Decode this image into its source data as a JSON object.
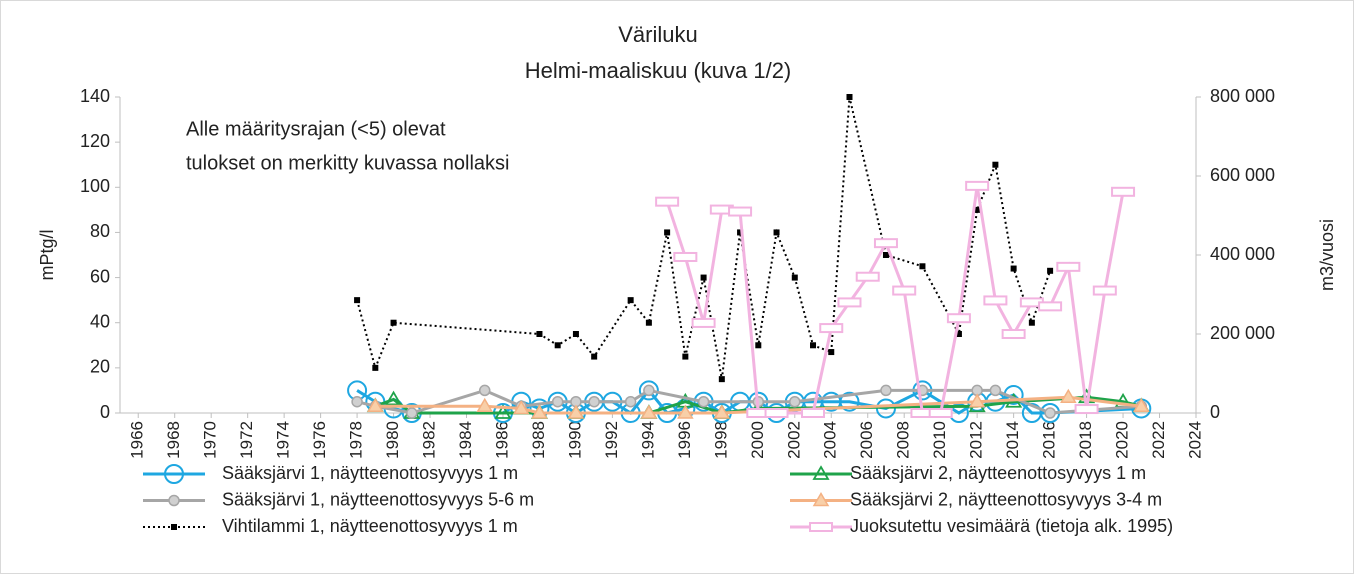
{
  "chart_data": {
    "type": "line",
    "title": "Väriluku",
    "subtitle": "Helmi-maaliskuu (kuva 1/2)",
    "annotation": [
      "Alle määritysrajan (<5) olevat",
      "tulokset on merkitty kuvassa nollaksi"
    ],
    "y_label": "mPtg/l",
    "y2_label": "m3/vuosi",
    "xlim": [
      1965,
      2024
    ],
    "xticks": [
      1966,
      1968,
      1970,
      1972,
      1974,
      1976,
      1978,
      1980,
      1982,
      1984,
      1986,
      1988,
      1990,
      1992,
      1994,
      1996,
      1998,
      2000,
      2002,
      2004,
      2006,
      2008,
      2010,
      2012,
      2014,
      2016,
      2018,
      2020,
      2022,
      2024
    ],
    "ylim": [
      0,
      140
    ],
    "yticks": [
      0,
      20,
      40,
      60,
      80,
      100,
      120,
      140
    ],
    "y2lim": [
      0,
      800000
    ],
    "y2ticks": [
      {
        "value": 0,
        "label": "0"
      },
      {
        "value": 200000,
        "label": "200 000"
      },
      {
        "value": 400000,
        "label": "400 000"
      },
      {
        "value": 600000,
        "label": "600 000"
      },
      {
        "value": 800000,
        "label": "800 000"
      }
    ],
    "series": [
      {
        "name": "Sääksjärvi 1, näytteenottosyvyys 1 m",
        "color": "#1ea7e1",
        "marker": "circle",
        "x": [
          1978,
          1979,
          1980,
          1981,
          1986,
          1987,
          1988,
          1989,
          1990,
          1991,
          1992,
          1993,
          1994,
          1995,
          1996,
          1997,
          1998,
          1999,
          2000,
          2001,
          2002,
          2003,
          2004,
          2005,
          2007,
          2009,
          2011,
          2012,
          2013,
          2014,
          2015,
          2016,
          2021
        ],
        "values": [
          10,
          5,
          2,
          0,
          0,
          5,
          2,
          5,
          0,
          5,
          5,
          0,
          10,
          0,
          2,
          5,
          0,
          5,
          5,
          0,
          5,
          5,
          5,
          5,
          2,
          10,
          0,
          5,
          5,
          8,
          0,
          0,
          2
        ]
      },
      {
        "name": "Sääksjärvi 2, näytteenottosyvyys 1 m",
        "color": "#1fa34a",
        "marker": "triangle",
        "x": [
          1979,
          1980,
          1981,
          1986,
          1988,
          1990,
          1994,
          1996,
          1998,
          2000,
          2012,
          2014,
          2018,
          2020,
          2021
        ],
        "values": [
          3,
          6,
          0,
          0,
          0,
          0,
          0,
          5,
          0,
          2,
          3,
          5,
          7,
          5,
          3
        ]
      },
      {
        "name": "Sääksjärvi 1, näytteenottosyvyys 5-6 m",
        "color": "#a6a6a6",
        "marker": "circle-filled",
        "x": [
          1978,
          1979,
          1981,
          1985,
          1987,
          1989,
          1990,
          1991,
          1993,
          1994,
          1997,
          2000,
          2002,
          2007,
          2009,
          2012,
          2013,
          2016,
          2021
        ],
        "values": [
          5,
          3,
          0,
          10,
          3,
          5,
          5,
          5,
          5,
          10,
          5,
          5,
          5,
          10,
          10,
          10,
          10,
          0,
          3
        ]
      },
      {
        "name": "Sääksjärvi 2, näytteenottosyvyys 3-4 m",
        "color": "#f4b183",
        "marker": "triangle-filled",
        "x": [
          1979,
          1985,
          1987,
          1988,
          1990,
          1994,
          1996,
          1998,
          2012,
          2017,
          2021
        ],
        "values": [
          3,
          3,
          2,
          0,
          0,
          0,
          0,
          0,
          5,
          7,
          3
        ]
      },
      {
        "name": "Vihtilammi 1, näytteenottosyvyys 1 m",
        "color": "#000000",
        "marker": "square",
        "dotted": true,
        "x": [
          1978,
          1979,
          1980,
          1988,
          1989,
          1990,
          1991,
          1993,
          1994,
          1995,
          1996,
          1997,
          1998,
          1999,
          2000,
          2001,
          2002,
          2003,
          2004,
          2005,
          2007,
          2009,
          2011,
          2012,
          2013,
          2014,
          2015,
          2016
        ],
        "values": [
          50,
          20,
          40,
          35,
          30,
          35,
          25,
          50,
          40,
          80,
          25,
          60,
          15,
          80,
          30,
          80,
          60,
          30,
          27,
          140,
          70,
          65,
          35,
          90,
          110,
          64,
          40,
          63
        ]
      },
      {
        "name": "Juoksutettu vesimäärä (tietoja alk. 1995)",
        "color": "#f2b3e0",
        "marker": "bar",
        "axis": "y2",
        "x": [
          1995,
          1996,
          1997,
          1998,
          1999,
          2000,
          2001,
          2003,
          2004,
          2005,
          2006,
          2007,
          2008,
          2009,
          2010,
          2011,
          2012,
          2013,
          2014,
          2015,
          2016,
          2017,
          2018,
          2019,
          2020
        ],
        "values": [
          535000,
          395000,
          228000,
          515000,
          510000,
          0,
          0,
          0,
          215000,
          280000,
          345000,
          430000,
          310000,
          0,
          0,
          240000,
          575000,
          285000,
          200000,
          280000,
          270000,
          370000,
          10000,
          310000,
          560000
        ]
      }
    ]
  }
}
